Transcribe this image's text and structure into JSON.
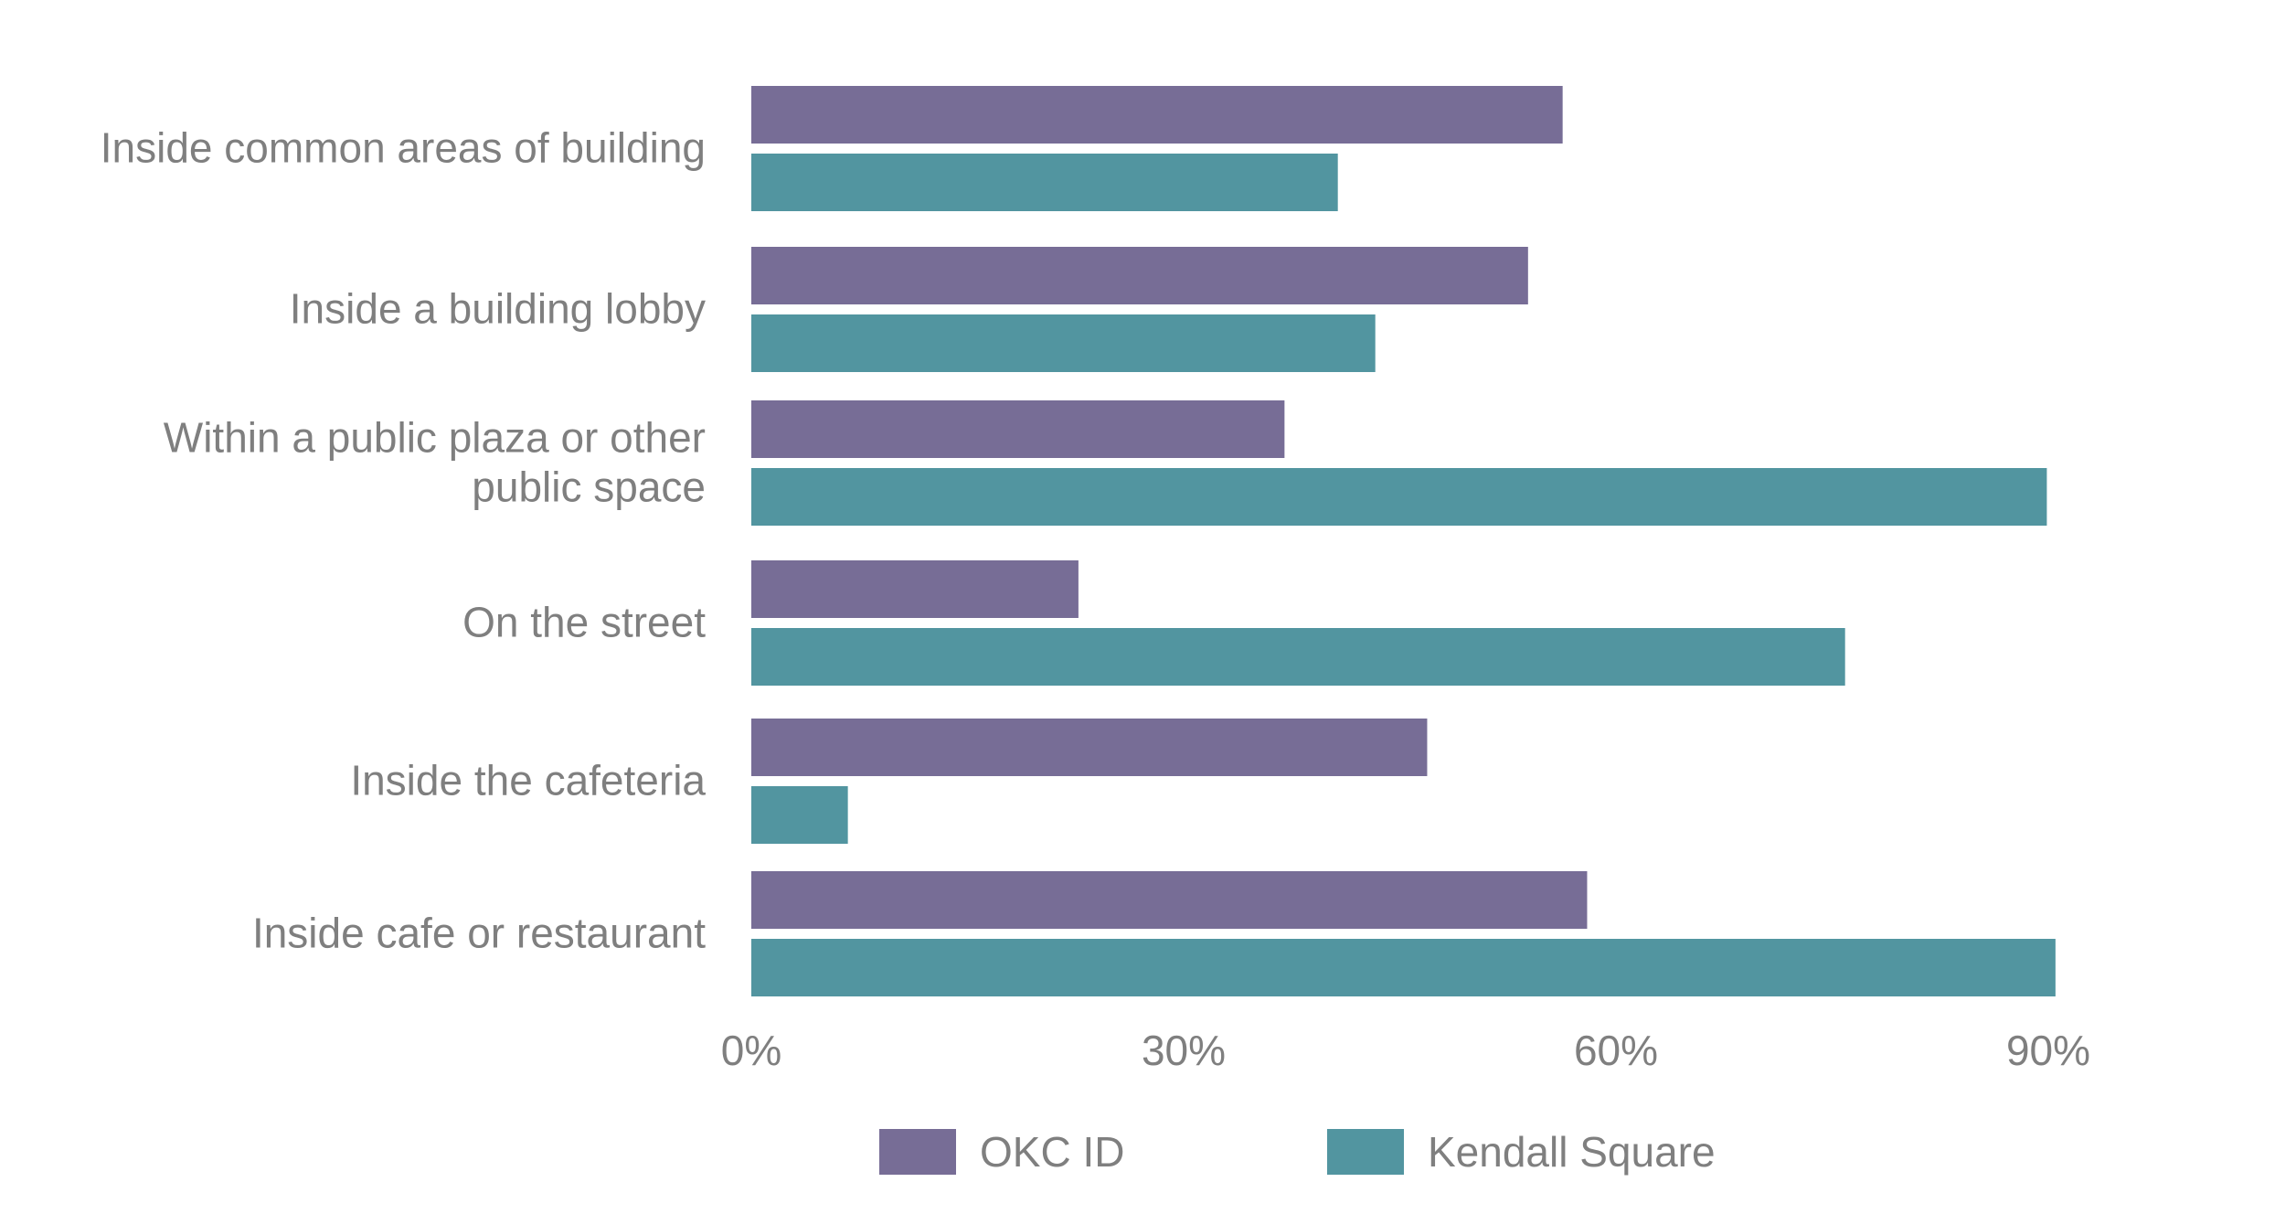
{
  "chart_data": {
    "type": "bar",
    "orientation": "horizontal",
    "categories": [
      [
        "Inside common areas of building"
      ],
      [
        "Inside a building lobby"
      ],
      [
        "Within a public plaza or other",
        "public space"
      ],
      [
        "On the street"
      ],
      [
        "Inside the cafeteria"
      ],
      [
        "Inside cafe or restaurant"
      ]
    ],
    "series": [
      {
        "name": "OKC ID",
        "color": "#776d96",
        "values": [
          56.3,
          53.9,
          37.0,
          22.7,
          46.9,
          58.0
        ]
      },
      {
        "name": "Kendall Square",
        "color": "#5295a0",
        "values": [
          40.7,
          43.3,
          89.9,
          75.9,
          6.7,
          90.5
        ]
      }
    ],
    "xlim": [
      0,
      90
    ],
    "xticks": [
      0,
      30,
      60,
      90
    ],
    "xtick_labels": [
      "0%",
      "30%",
      "60%",
      "90%"
    ],
    "grid": false,
    "legend_position": "bottom"
  }
}
